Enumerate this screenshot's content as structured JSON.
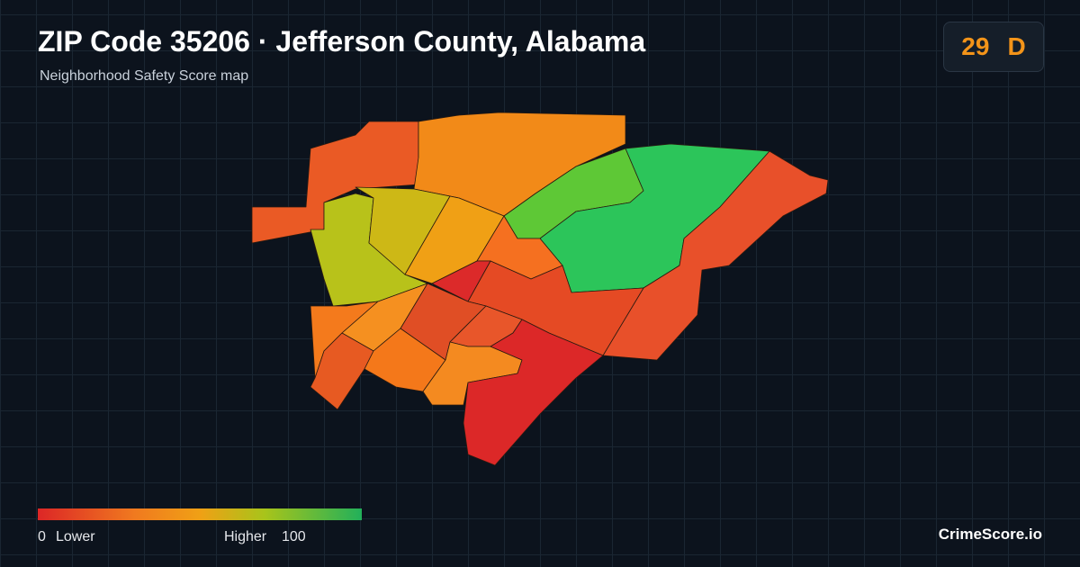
{
  "header": {
    "title": "ZIP Code 35206 · Jefferson County, Alabama",
    "subtitle": "Neighborhood Safety Score map"
  },
  "score": {
    "value": 29,
    "grade": "D"
  },
  "legend": {
    "min": 0,
    "min_label": "Lower",
    "max_label": "Higher",
    "max": 100
  },
  "brand": "CrimeScore.io"
}
